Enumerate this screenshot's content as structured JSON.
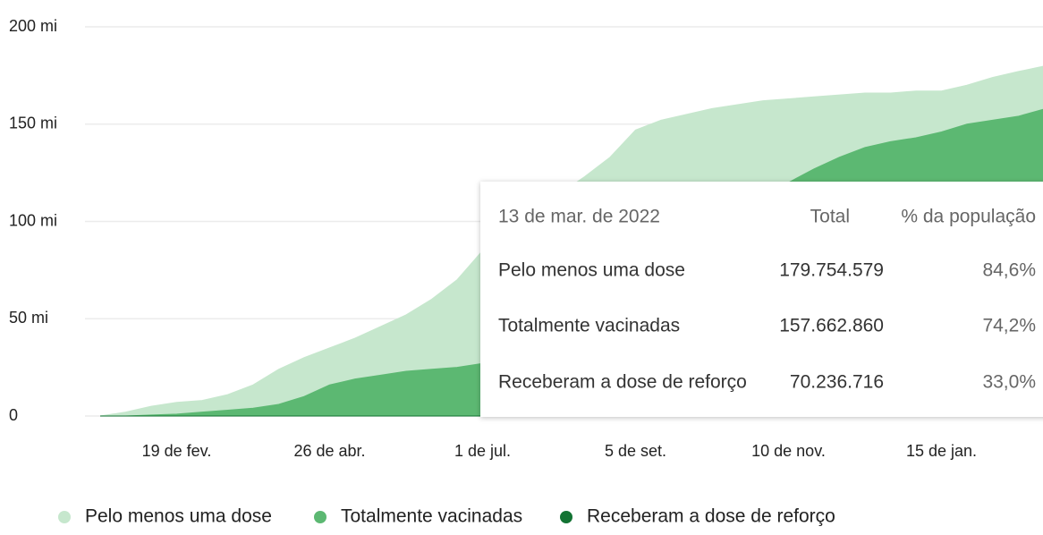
{
  "chart_data": {
    "type": "area",
    "categories": [
      null,
      null,
      null,
      "19 de fev.",
      null,
      null,
      null,
      null,
      null,
      "26 de abr.",
      null,
      null,
      null,
      null,
      null,
      "1 de jul.",
      null,
      null,
      null,
      null,
      null,
      "5 de set.",
      null,
      null,
      null,
      null,
      null,
      "10 de nov.",
      null,
      null,
      null,
      null,
      null,
      "15 de jan.",
      null,
      null,
      null,
      null
    ],
    "series": [
      {
        "name": "Pelo menos uma dose",
        "color": "#c6e7cd",
        "values": [
          0,
          2,
          5,
          7,
          8,
          11,
          16,
          24,
          30,
          35,
          40,
          46,
          52,
          60,
          70,
          85,
          96,
          105,
          114,
          123,
          133,
          147,
          152,
          155,
          158,
          160,
          162,
          163,
          164,
          165,
          166,
          166,
          167,
          167,
          170,
          174,
          177,
          179.75
        ]
      },
      {
        "name": "Totalmente vacinadas",
        "color": "#5cb872",
        "values": [
          0,
          0,
          0.5,
          1,
          2,
          3,
          4,
          6,
          10,
          16,
          19,
          21,
          23,
          24,
          25,
          27,
          30,
          34,
          40,
          47,
          55,
          63,
          72,
          80,
          88,
          96,
          104,
          120,
          127,
          133,
          138,
          141,
          143,
          146,
          150,
          152,
          154,
          157.66
        ]
      },
      {
        "name": "Receberam a dose de reforço",
        "color": "#137333",
        "values": [
          0,
          0,
          0,
          0,
          0,
          0,
          0,
          0,
          0,
          0,
          0,
          0,
          0,
          0,
          0,
          0,
          0,
          0,
          0,
          0,
          0,
          0,
          0,
          0,
          0,
          1,
          3,
          7,
          12,
          18,
          25,
          32,
          40,
          48,
          56,
          62,
          67,
          70.24
        ]
      }
    ],
    "ylim": [
      0,
      200
    ],
    "yticks": [
      0,
      {
        "value": 50,
        "label": "50 mi"
      },
      {
        "value": 100,
        "label": "100 mi"
      },
      {
        "value": 150,
        "label": "150 mi"
      },
      {
        "value": 200,
        "label": "200 mi"
      }
    ],
    "grid": true,
    "legend": "bottom"
  },
  "tooltip": {
    "date": "13 de mar. de 2022",
    "headers": [
      "Total",
      "% da população"
    ],
    "rows": [
      [
        "Pelo menos uma dose",
        "179.754.579",
        "84,6%"
      ],
      [
        "Totalmente vacinadas",
        "157.662.860",
        "74,2%"
      ],
      [
        "Receberam a dose de reforço",
        "70.236.716",
        "33,0%"
      ]
    ]
  }
}
